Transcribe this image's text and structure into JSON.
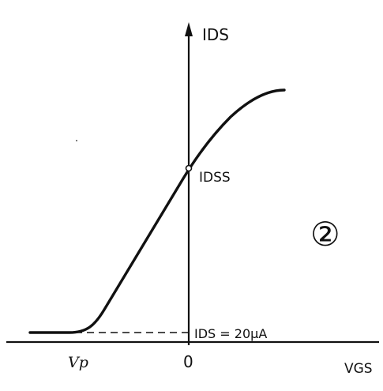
{
  "labels": {
    "y_axis": "IDS",
    "x_axis": "VGS",
    "idss": "IDSS",
    "origin": "0",
    "pinch_off": "Vp",
    "leakage": "IDS = 20μA",
    "figure_number": "②"
  },
  "colors": {
    "ink": "#111111",
    "background": "#ffffff"
  }
}
